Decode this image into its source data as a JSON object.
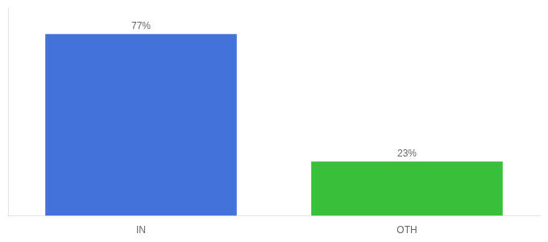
{
  "chart_data": {
    "type": "bar",
    "categories": [
      "IN",
      "OTH"
    ],
    "values": [
      77,
      23
    ],
    "value_labels": [
      "77%",
      "23%"
    ],
    "colors": [
      "#4472db",
      "#3abf3a"
    ],
    "ylim": [
      0,
      88
    ],
    "data_labels": true,
    "tick_labels": "x",
    "grid": false
  }
}
